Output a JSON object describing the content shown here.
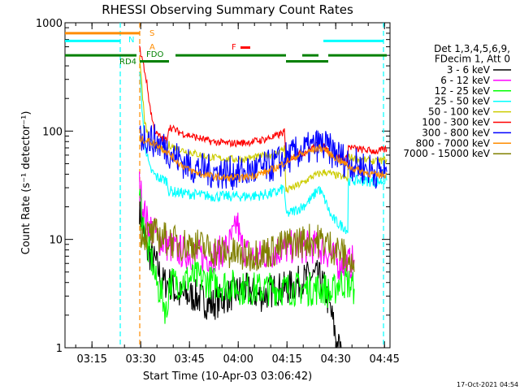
{
  "chart_data": {
    "type": "line",
    "title": "RHESSI Observing Summary Count Rates",
    "xlabel": "Start Time (10-Apr-03 03:06:42)",
    "ylabel": "Count Rate (s⁻¹ detector⁻¹)",
    "y_scale": "log",
    "ylim": [
      1,
      1000
    ],
    "xlim_minutes": [
      0,
      100
    ],
    "x_ticks": [
      {
        "minute": 8.3,
        "label": "03:15"
      },
      {
        "minute": 23.3,
        "label": "03:30"
      },
      {
        "minute": 38.3,
        "label": "03:45"
      },
      {
        "minute": 53.3,
        "label": "04:00"
      },
      {
        "minute": 68.3,
        "label": "04:15"
      },
      {
        "minute": 83.3,
        "label": "04:30"
      },
      {
        "minute": 98.3,
        "label": "04:45"
      }
    ],
    "y_ticks": [
      {
        "value": 1,
        "label": "1"
      },
      {
        "value": 10,
        "label": "10"
      },
      {
        "value": 100,
        "label": "100"
      },
      {
        "value": 1000,
        "label": "1000"
      }
    ],
    "legend_header": [
      "Det 1,3,4,5,6,9,",
      "FDecim 1, Att 0"
    ],
    "series": [
      {
        "name": "3 - 6 keV",
        "color": "#000000",
        "points": [
          [
            22.9,
            20
          ],
          [
            23.8,
            14
          ],
          [
            25,
            8
          ],
          [
            26.5,
            7
          ],
          [
            28,
            6
          ],
          [
            30,
            4
          ],
          [
            32,
            4
          ],
          [
            35,
            3
          ],
          [
            40,
            3
          ],
          [
            45,
            2.5
          ],
          [
            50,
            3
          ],
          [
            55,
            3.5
          ],
          [
            60,
            3
          ],
          [
            65,
            3.5
          ],
          [
            68,
            3.5
          ],
          [
            72,
            4
          ],
          [
            75,
            4.5
          ],
          [
            78,
            4.5
          ],
          [
            80,
            3.5
          ],
          [
            82,
            2
          ],
          [
            84,
            1
          ],
          [
            85,
            1
          ]
        ]
      },
      {
        "name": "6 - 12 keV",
        "color": "#ff00ff",
        "points": [
          [
            22.9,
            32
          ],
          [
            23.8,
            22
          ],
          [
            25,
            15
          ],
          [
            27,
            12
          ],
          [
            29,
            10
          ],
          [
            31,
            9
          ],
          [
            34,
            8
          ],
          [
            38,
            7.5
          ],
          [
            42,
            7
          ],
          [
            46,
            7
          ],
          [
            50,
            8.5
          ],
          [
            52,
            11
          ],
          [
            53,
            15
          ],
          [
            54,
            9
          ],
          [
            57,
            7
          ],
          [
            60,
            7
          ],
          [
            63,
            7.5
          ],
          [
            66,
            8
          ],
          [
            70,
            8.5
          ],
          [
            74,
            8.5
          ],
          [
            77,
            8.5
          ],
          [
            80,
            8
          ],
          [
            82,
            7
          ],
          [
            84,
            6
          ],
          [
            86,
            6
          ],
          [
            88,
            6
          ],
          [
            89,
            6.5
          ]
        ]
      },
      {
        "name": "12 - 25 keV",
        "color": "#00ff00",
        "points": [
          [
            22.9,
            25
          ],
          [
            23.8,
            16
          ],
          [
            25,
            9
          ],
          [
            27,
            6
          ],
          [
            28,
            4
          ],
          [
            30,
            3
          ],
          [
            31.3,
            2
          ],
          [
            32,
            4
          ],
          [
            35,
            4
          ],
          [
            40,
            4.5
          ],
          [
            45,
            4
          ],
          [
            50,
            3.8
          ],
          [
            55,
            3.5
          ],
          [
            60,
            3.5
          ],
          [
            65,
            3.5
          ],
          [
            70,
            3.5
          ],
          [
            75,
            3.5
          ],
          [
            80,
            3.5
          ],
          [
            82,
            3
          ],
          [
            84,
            4
          ],
          [
            87,
            4
          ],
          [
            89,
            3.5
          ]
        ]
      },
      {
        "name": "25 - 50 keV",
        "color": "#00ffff",
        "points": [
          [
            22.9,
            380
          ],
          [
            23.5,
            200
          ],
          [
            24.5,
            80
          ],
          [
            26,
            45
          ],
          [
            28,
            38
          ],
          [
            30,
            36
          ],
          [
            31.3,
            35
          ],
          [
            32,
            28
          ],
          [
            35,
            27
          ],
          [
            40,
            26
          ],
          [
            45,
            25
          ],
          [
            50,
            25
          ],
          [
            55,
            25
          ],
          [
            60,
            25.5
          ],
          [
            65,
            27
          ],
          [
            67.5,
            30
          ],
          [
            68,
            17
          ],
          [
            70,
            18
          ],
          [
            73,
            20
          ],
          [
            76,
            24
          ],
          [
            78,
            30
          ],
          [
            80,
            23
          ],
          [
            82,
            16
          ],
          [
            84,
            14
          ],
          [
            86,
            13
          ],
          [
            87,
            12
          ],
          [
            87.2,
            35
          ],
          [
            90,
            35
          ],
          [
            96,
            34
          ],
          [
            99,
            35
          ]
        ]
      },
      {
        "name": "50 - 100 keV",
        "color": "#cccc00",
        "points": [
          [
            22.9,
            500
          ],
          [
            23.5,
            300
          ],
          [
            24.5,
            120
          ],
          [
            26,
            80
          ],
          [
            28,
            72
          ],
          [
            30,
            68
          ],
          [
            31.3,
            65
          ],
          [
            32,
            75
          ],
          [
            35,
            68
          ],
          [
            40,
            62
          ],
          [
            45,
            57
          ],
          [
            50,
            55
          ],
          [
            55,
            55
          ],
          [
            60,
            58
          ],
          [
            65,
            62
          ],
          [
            67.5,
            70
          ],
          [
            68,
            28
          ],
          [
            70,
            30
          ],
          [
            73,
            33
          ],
          [
            76,
            38
          ],
          [
            80,
            42
          ],
          [
            82,
            40
          ],
          [
            85,
            38
          ],
          [
            87,
            36
          ],
          [
            87.2,
            58
          ],
          [
            90,
            55
          ],
          [
            96,
            52
          ],
          [
            99,
            55
          ]
        ]
      },
      {
        "name": "100 - 300 keV",
        "color": "#ff0000",
        "points": [
          [
            22.9,
            580
          ],
          [
            23.5,
            500
          ],
          [
            24,
            430
          ],
          [
            25,
            300
          ],
          [
            26,
            180
          ],
          [
            27,
            120
          ],
          [
            28,
            95
          ],
          [
            30,
            85
          ],
          [
            31.3,
            82
          ],
          [
            32,
            110
          ],
          [
            35,
            98
          ],
          [
            40,
            88
          ],
          [
            45,
            80
          ],
          [
            50,
            77
          ],
          [
            55,
            78
          ],
          [
            60,
            82
          ],
          [
            65,
            90
          ],
          [
            67.5,
            98
          ],
          [
            68,
            55
          ],
          [
            70,
            58
          ],
          [
            73,
            62
          ],
          [
            76,
            70
          ],
          [
            78,
            75
          ],
          [
            80,
            70
          ],
          [
            82,
            62
          ],
          [
            84,
            58
          ],
          [
            86,
            56
          ],
          [
            87,
            55
          ],
          [
            87.2,
            72
          ],
          [
            90,
            68
          ],
          [
            96,
            65
          ],
          [
            99,
            68
          ]
        ]
      },
      {
        "name": "300 - 800 keV",
        "color": "#0000ff",
        "points": [
          [
            23,
            90
          ],
          [
            25,
            88
          ],
          [
            28,
            80
          ],
          [
            31,
            70
          ],
          [
            34,
            58
          ],
          [
            38,
            48
          ],
          [
            42,
            44
          ],
          [
            46,
            42
          ],
          [
            50,
            41
          ],
          [
            54,
            41
          ],
          [
            58,
            43
          ],
          [
            62,
            46
          ],
          [
            65,
            50
          ],
          [
            68,
            56
          ],
          [
            72,
            64
          ],
          [
            76,
            70
          ],
          [
            78,
            75
          ],
          [
            80,
            72
          ],
          [
            82,
            65
          ],
          [
            84,
            60
          ],
          [
            86,
            54
          ],
          [
            88,
            50
          ],
          [
            92,
            46
          ],
          [
            96,
            42
          ],
          [
            99,
            42
          ]
        ]
      },
      {
        "name": "800 - 7000 keV",
        "color": "#ff8c00",
        "points": [
          [
            23,
            85
          ],
          [
            25,
            82
          ],
          [
            28,
            76
          ],
          [
            31,
            66
          ],
          [
            34,
            54
          ],
          [
            38,
            44
          ],
          [
            42,
            40
          ],
          [
            46,
            38
          ],
          [
            50,
            37
          ],
          [
            54,
            37
          ],
          [
            58,
            39
          ],
          [
            62,
            42
          ],
          [
            65,
            46
          ],
          [
            68,
            52
          ],
          [
            72,
            60
          ],
          [
            76,
            66
          ],
          [
            78,
            70
          ],
          [
            80,
            68
          ],
          [
            82,
            60
          ],
          [
            84,
            55
          ],
          [
            86,
            50
          ],
          [
            88,
            46
          ],
          [
            92,
            42
          ],
          [
            96,
            39
          ],
          [
            99,
            40
          ]
        ]
      },
      {
        "name": "7000 - 15000 keV",
        "color": "#808000",
        "points": [
          [
            23,
            12
          ],
          [
            25,
            11
          ],
          [
            28,
            11
          ],
          [
            30,
            10.5
          ],
          [
            31.3,
            10
          ],
          [
            32,
            10
          ],
          [
            35,
            9
          ],
          [
            40,
            9
          ],
          [
            45,
            8
          ],
          [
            50,
            7.5
          ],
          [
            55,
            7
          ],
          [
            60,
            7.5
          ],
          [
            65,
            8
          ],
          [
            68,
            9
          ],
          [
            72,
            9.5
          ],
          [
            76,
            10
          ],
          [
            80,
            9.5
          ],
          [
            82,
            8.5
          ],
          [
            84,
            8
          ],
          [
            86,
            7
          ],
          [
            88,
            6
          ],
          [
            89,
            5
          ]
        ]
      }
    ],
    "flags": [
      {
        "label": "S",
        "color": "#ff8c00",
        "y": 800,
        "segments": [
          [
            0,
            23
          ]
        ]
      },
      {
        "label": "N",
        "color": "#00ffff",
        "y": 680,
        "segments": [
          [
            0,
            17
          ],
          [
            79.5,
            98
          ]
        ]
      },
      {
        "label": "A",
        "color": "#ff8c00",
        "y": 590,
        "segments": []
      },
      {
        "label": "F",
        "color": "#ff0000",
        "y": 590,
        "segments": [
          [
            54,
            57
          ]
        ]
      },
      {
        "label": "FDO",
        "color": "#008000",
        "y": 500,
        "segments": [
          [
            0,
            22
          ],
          [
            34,
            68
          ],
          [
            73,
            78
          ],
          [
            81,
            99
          ]
        ]
      },
      {
        "label": "RD4",
        "color": "#008000",
        "y": 440,
        "segments": [
          [
            23,
            32
          ],
          [
            68,
            81
          ]
        ]
      }
    ],
    "vertical_markers": [
      {
        "minute": 17,
        "color": "#00ffff"
      },
      {
        "minute": 23,
        "color": "#ff8c00"
      },
      {
        "minute": 98,
        "color": "#00ffff"
      }
    ],
    "timestamp": "17-Oct-2021 04:54"
  }
}
